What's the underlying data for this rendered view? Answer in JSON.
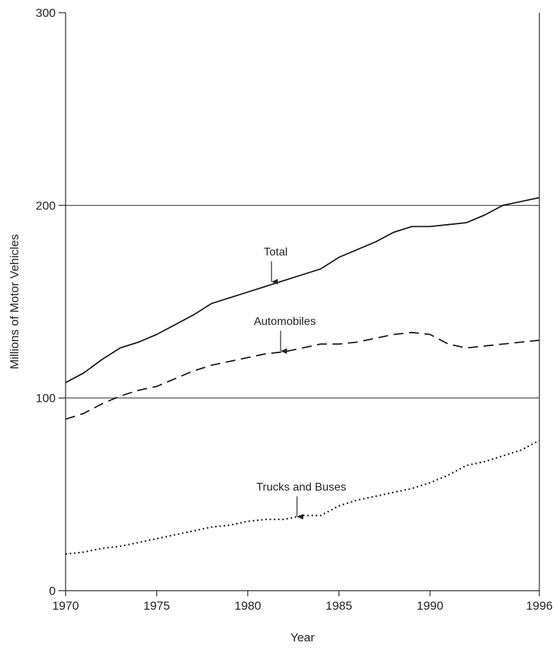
{
  "chart_data": {
    "type": "line",
    "xlabel": "Year",
    "ylabel": "Millions of Motor Vehicles",
    "xlim": [
      1970,
      1996
    ],
    "ylim": [
      0,
      300
    ],
    "x_ticks": [
      1970,
      1975,
      1980,
      1985,
      1990,
      1996
    ],
    "y_ticks": [
      0,
      100,
      200,
      300
    ],
    "grid": "horizontal lines at 100 and 200",
    "series": [
      {
        "name": "Total",
        "style": "solid",
        "color": "#111111",
        "x": [
          1970,
          1971,
          1972,
          1973,
          1974,
          1975,
          1976,
          1977,
          1978,
          1979,
          1980,
          1981,
          1982,
          1983,
          1984,
          1985,
          1986,
          1987,
          1988,
          1989,
          1990,
          1991,
          1992,
          1993,
          1994,
          1995,
          1996
        ],
        "y": [
          108,
          113,
          120,
          126,
          129,
          133,
          138,
          143,
          149,
          152,
          155,
          158,
          161,
          164,
          167,
          173,
          177,
          181,
          186,
          189,
          189,
          190,
          191,
          195,
          200,
          202,
          204
        ]
      },
      {
        "name": "Automobiles",
        "style": "dashed",
        "color": "#111111",
        "x": [
          1970,
          1971,
          1972,
          1973,
          1974,
          1975,
          1976,
          1977,
          1978,
          1979,
          1980,
          1981,
          1982,
          1983,
          1984,
          1985,
          1986,
          1987,
          1988,
          1989,
          1990,
          1991,
          1992,
          1993,
          1994,
          1995,
          1996
        ],
        "y": [
          89,
          92,
          97,
          101,
          104,
          106,
          110,
          114,
          117,
          119,
          121,
          123,
          124,
          126,
          128,
          128,
          129,
          131,
          133,
          134,
          133,
          128,
          126,
          127,
          128,
          129,
          130
        ]
      },
      {
        "name": "Trucks and Buses",
        "style": "dotted",
        "color": "#111111",
        "x": [
          1970,
          1971,
          1972,
          1973,
          1974,
          1975,
          1976,
          1977,
          1978,
          1979,
          1980,
          1981,
          1982,
          1983,
          1984,
          1985,
          1986,
          1987,
          1988,
          1989,
          1990,
          1991,
          1992,
          1993,
          1994,
          1995,
          1996
        ],
        "y": [
          19,
          20,
          22,
          23,
          25,
          27,
          29,
          31,
          33,
          34,
          36,
          37,
          37,
          39,
          39,
          44,
          47,
          49,
          51,
          53,
          56,
          60,
          65,
          67,
          70,
          73,
          78
        ]
      }
    ],
    "annotations": [
      {
        "text": "Total",
        "x": 1981.3,
        "y": 160
      },
      {
        "text": "Automobiles",
        "x": 1981.8,
        "y": 124
      },
      {
        "text": "Trucks and Buses",
        "x": 1982.7,
        "y": 38
      }
    ]
  }
}
